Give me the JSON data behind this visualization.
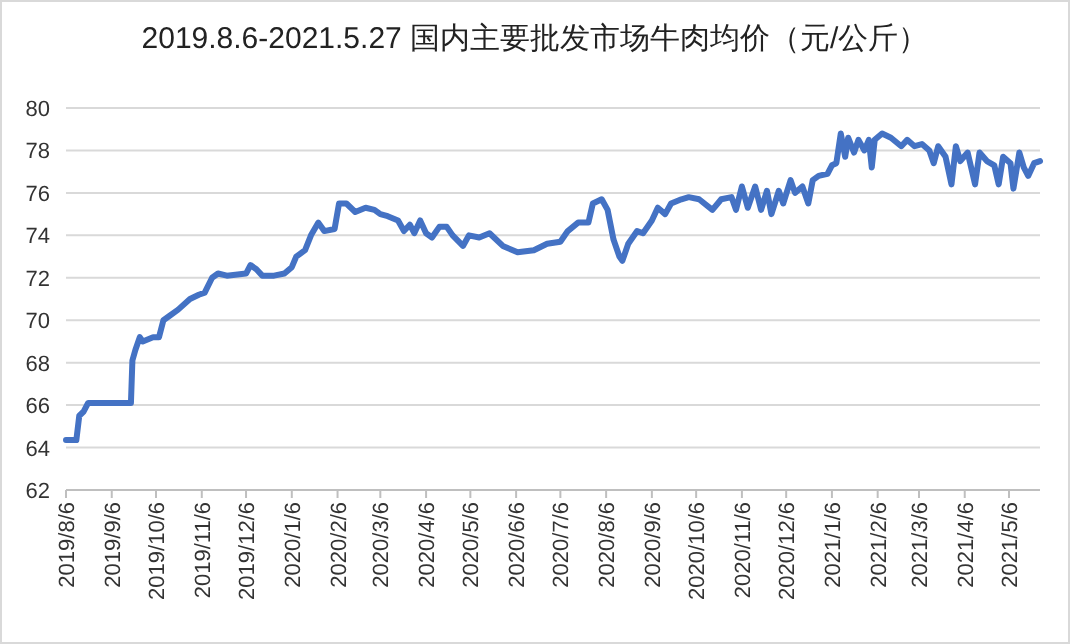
{
  "chart_data": {
    "type": "line",
    "title": "2019.8.6-2021.5.27 国内主要批发市场牛肉均价（元/公斤）",
    "x": [
      "2019-08-06",
      "2019-08-13",
      "2019-08-15",
      "2019-08-18",
      "2019-08-21",
      "2019-09-06",
      "2019-09-19",
      "2019-09-20",
      "2019-09-22",
      "2019-09-25",
      "2019-09-27",
      "2019-10-04",
      "2019-10-08",
      "2019-10-11",
      "2019-10-15",
      "2019-10-21",
      "2019-10-29",
      "2019-11-04",
      "2019-11-08",
      "2019-11-13",
      "2019-11-17",
      "2019-11-23",
      "2019-12-06",
      "2019-12-09",
      "2019-12-13",
      "2019-12-17",
      "2019-12-25",
      "2020-01-01",
      "2020-01-06",
      "2020-01-09",
      "2020-01-15",
      "2020-01-19",
      "2020-01-24",
      "2020-01-28",
      "2020-02-04",
      "2020-02-07",
      "2020-02-12",
      "2020-02-18",
      "2020-02-25",
      "2020-03-02",
      "2020-03-06",
      "2020-03-11",
      "2020-03-18",
      "2020-03-22",
      "2020-03-26",
      "2020-03-29",
      "2020-04-02",
      "2020-04-06",
      "2020-04-10",
      "2020-04-15",
      "2020-04-20",
      "2020-04-24",
      "2020-05-01",
      "2020-05-05",
      "2020-05-12",
      "2020-05-19",
      "2020-05-28",
      "2020-06-07",
      "2020-06-18",
      "2020-06-27",
      "2020-07-06",
      "2020-07-11",
      "2020-07-18",
      "2020-07-25",
      "2020-07-28",
      "2020-08-03",
      "2020-08-07",
      "2020-08-11",
      "2020-08-15",
      "2020-08-17",
      "2020-08-21",
      "2020-08-27",
      "2020-08-31",
      "2020-09-06",
      "2020-09-10",
      "2020-09-15",
      "2020-09-19",
      "2020-09-26",
      "2020-10-01",
      "2020-10-08",
      "2020-10-17",
      "2020-10-23",
      "2020-10-30",
      "2020-11-02",
      "2020-11-06",
      "2020-11-10",
      "2020-11-15",
      "2020-11-19",
      "2020-11-23",
      "2020-11-26",
      "2020-12-01",
      "2020-12-04",
      "2020-12-09",
      "2020-12-12",
      "2020-12-17",
      "2020-12-21",
      "2020-12-24",
      "2020-12-28",
      "2021-01-03",
      "2021-01-06",
      "2021-01-09",
      "2021-01-12",
      "2021-01-15",
      "2021-01-17",
      "2021-01-21",
      "2021-01-24",
      "2021-01-28",
      "2021-01-31",
      "2021-02-02",
      "2021-02-04",
      "2021-02-09",
      "2021-02-15",
      "2021-02-22",
      "2021-02-26",
      "2021-03-03",
      "2021-03-08",
      "2021-03-13",
      "2021-03-16",
      "2021-03-19",
      "2021-03-24",
      "2021-03-28",
      "2021-03-31",
      "2021-04-03",
      "2021-04-08",
      "2021-04-13",
      "2021-04-16",
      "2021-04-21",
      "2021-04-26",
      "2021-04-29",
      "2021-05-02",
      "2021-05-07",
      "2021-05-09",
      "2021-05-13",
      "2021-05-16",
      "2021-05-19",
      "2021-05-23",
      "2021-05-27"
    ],
    "series": [
      {
        "color": "#4472c4",
        "values": [
          64.35,
          64.35,
          65.5,
          65.7,
          66.1,
          66.1,
          66.1,
          68.1,
          68.6,
          69.2,
          69.0,
          69.2,
          69.2,
          70.0,
          70.2,
          70.5,
          71.0,
          71.2,
          71.3,
          72.0,
          72.2,
          72.1,
          72.2,
          72.6,
          72.4,
          72.1,
          72.1,
          72.2,
          72.5,
          73.0,
          73.3,
          74.0,
          74.6,
          74.2,
          74.3,
          75.5,
          75.5,
          75.1,
          75.3,
          75.2,
          75.0,
          74.9,
          74.7,
          74.2,
          74.5,
          74.1,
          74.7,
          74.1,
          73.9,
          74.4,
          74.4,
          74.0,
          73.5,
          74.0,
          73.9,
          74.1,
          73.5,
          73.2,
          73.3,
          73.6,
          73.7,
          74.2,
          74.6,
          74.6,
          75.5,
          75.7,
          75.2,
          73.8,
          73.0,
          72.8,
          73.6,
          74.2,
          74.1,
          74.7,
          75.3,
          75.0,
          75.5,
          75.7,
          75.8,
          75.7,
          75.2,
          75.7,
          75.8,
          75.2,
          76.3,
          75.3,
          76.3,
          75.2,
          76.1,
          75.0,
          76.1,
          75.5,
          76.6,
          76.0,
          76.3,
          75.5,
          76.6,
          76.8,
          76.9,
          77.3,
          77.4,
          78.8,
          77.7,
          78.6,
          77.9,
          78.5,
          78.0,
          78.5,
          77.2,
          78.5,
          78.8,
          78.6,
          78.2,
          78.5,
          78.2,
          78.3,
          78.0,
          77.4,
          78.2,
          77.7,
          76.4,
          78.2,
          77.5,
          77.9,
          76.4,
          77.9,
          77.5,
          77.3,
          76.4,
          77.7,
          77.4,
          76.2,
          77.9,
          77.2,
          76.8,
          77.4,
          77.5
        ]
      }
    ],
    "xlim": [
      "2019-08-06",
      "2021-05-27"
    ],
    "xticks": [
      {
        "value": "2019-08-06",
        "label": "2019/8/6"
      },
      {
        "value": "2019-09-06",
        "label": "2019/9/6"
      },
      {
        "value": "2019-10-06",
        "label": "2019/10/6"
      },
      {
        "value": "2019-11-06",
        "label": "2019/11/6"
      },
      {
        "value": "2019-12-06",
        "label": "2019/12/6"
      },
      {
        "value": "2020-01-06",
        "label": "2020/1/6"
      },
      {
        "value": "2020-02-06",
        "label": "2020/2/6"
      },
      {
        "value": "2020-03-06",
        "label": "2020/3/6"
      },
      {
        "value": "2020-04-06",
        "label": "2020/4/6"
      },
      {
        "value": "2020-05-06",
        "label": "2020/5/6"
      },
      {
        "value": "2020-06-06",
        "label": "2020/6/6"
      },
      {
        "value": "2020-07-06",
        "label": "2020/7/6"
      },
      {
        "value": "2020-08-06",
        "label": "2020/8/6"
      },
      {
        "value": "2020-09-06",
        "label": "2020/9/6"
      },
      {
        "value": "2020-10-06",
        "label": "2020/10/6"
      },
      {
        "value": "2020-11-06",
        "label": "2020/11/6"
      },
      {
        "value": "2020-12-06",
        "label": "2020/12/6"
      },
      {
        "value": "2021-01-06",
        "label": "2021/1/6"
      },
      {
        "value": "2021-02-06",
        "label": "2021/2/6"
      },
      {
        "value": "2021-03-06",
        "label": "2021/3/6"
      },
      {
        "value": "2021-04-06",
        "label": "2021/4/6"
      },
      {
        "value": "2021-05-06",
        "label": "2021/5/6"
      }
    ],
    "ylim": [
      62,
      80
    ],
    "yticks": [
      62,
      64,
      66,
      68,
      70,
      72,
      74,
      76,
      78,
      80
    ],
    "grid": "y"
  }
}
